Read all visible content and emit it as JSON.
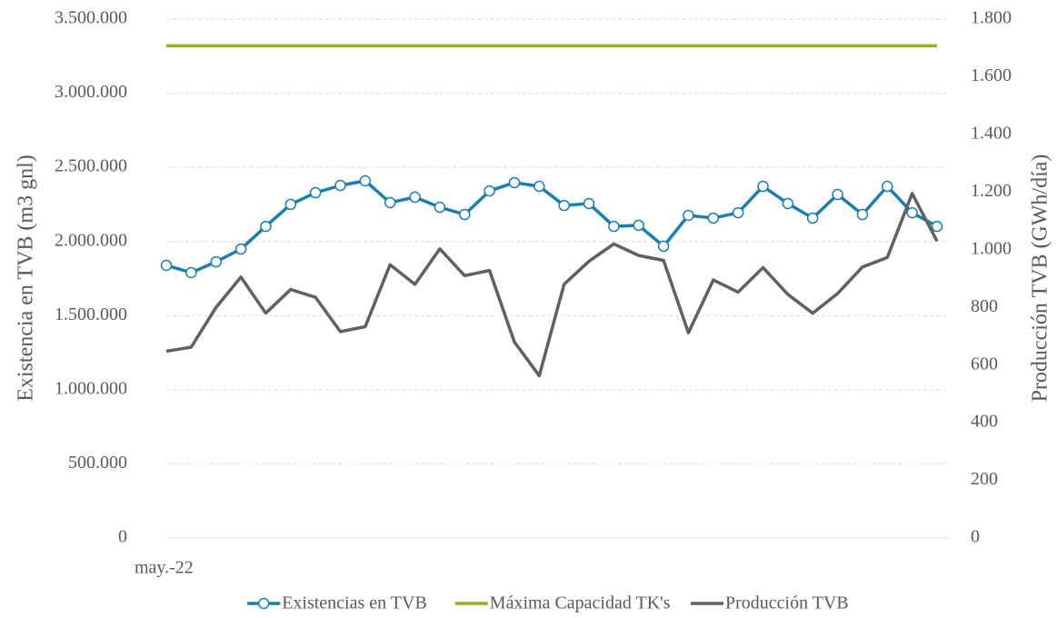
{
  "chart_data": {
    "type": "line",
    "ylabel": "Existencia en TVB (m3 gnl)",
    "y2label": "Producción TVB (GWh/día)",
    "categories": [
      "may.-22",
      null,
      null,
      null,
      null,
      null,
      null,
      null,
      null,
      null,
      null,
      null,
      null,
      null,
      null,
      null,
      null,
      null,
      null,
      null,
      null,
      null,
      null,
      null,
      null,
      null,
      null,
      null,
      null,
      null,
      null,
      null
    ],
    "series": [
      {
        "name": "Existencias en TVB",
        "color": "#1a7fae",
        "marker": true,
        "values": [
          1839000,
          1790000,
          1863000,
          1949000,
          2102000,
          2250000,
          2329000,
          2378000,
          2409000,
          2262000,
          2299000,
          2231000,
          2182000,
          2341000,
          2397000,
          2372000,
          2243000,
          2256000,
          2102000,
          2109000,
          1968000,
          2176000,
          2158000,
          2194000,
          2372000,
          2256000,
          2158000,
          2317000,
          2182000,
          2372000,
          2194000,
          2102000
        ]
      },
      {
        "name": "Máxima Capacidad TK's",
        "color": "#8db61c",
        "values": [
          3320000,
          3320000,
          3320000,
          3320000,
          3320000,
          3320000,
          3320000,
          3320000,
          3320000,
          3320000,
          3320000,
          3320000,
          3320000,
          3320000,
          3320000,
          3320000,
          3320000,
          3320000,
          3320000,
          3320000,
          3320000,
          3320000,
          3320000,
          3320000,
          3320000,
          3320000,
          3320000,
          3320000,
          3320000,
          3320000,
          3320000,
          3320000
        ]
      },
      {
        "name": "Producción TVB",
        "color": "#5f6064",
        "axis": "y2",
        "values": [
          648,
          662,
          800,
          905,
          780,
          862,
          835,
          716,
          733,
          948,
          880,
          1003,
          910,
          928,
          680,
          563,
          880,
          960,
          1020,
          980,
          963,
          712,
          895,
          853,
          938,
          845,
          780,
          848,
          940,
          973,
          1195,
          1030
        ]
      }
    ],
    "ylim": [
      0,
      3500000
    ],
    "yticks": [
      0,
      {
        "value": 500000,
        "label": "500.000"
      },
      {
        "value": 1000000,
        "label": "1.000.000"
      },
      {
        "value": 1500000,
        "label": "1.500.000"
      },
      {
        "value": 2000000,
        "label": "2.000.000"
      },
      {
        "value": 2500000,
        "label": "2.500.000"
      },
      {
        "value": 3000000,
        "label": "3.000.000"
      },
      {
        "value": 3500000,
        "label": "3.500.000"
      }
    ],
    "y2lim": [
      0,
      1800
    ],
    "y2ticks": [
      0,
      200,
      400,
      600,
      800,
      {
        "value": 1000,
        "label": "1.000"
      },
      {
        "value": 1200,
        "label": "1.200"
      },
      {
        "value": 1400,
        "label": "1.400"
      },
      {
        "value": 1600,
        "label": "1.600"
      },
      {
        "value": 1800,
        "label": "1.800"
      }
    ],
    "grid": true,
    "legend": "bottom"
  }
}
